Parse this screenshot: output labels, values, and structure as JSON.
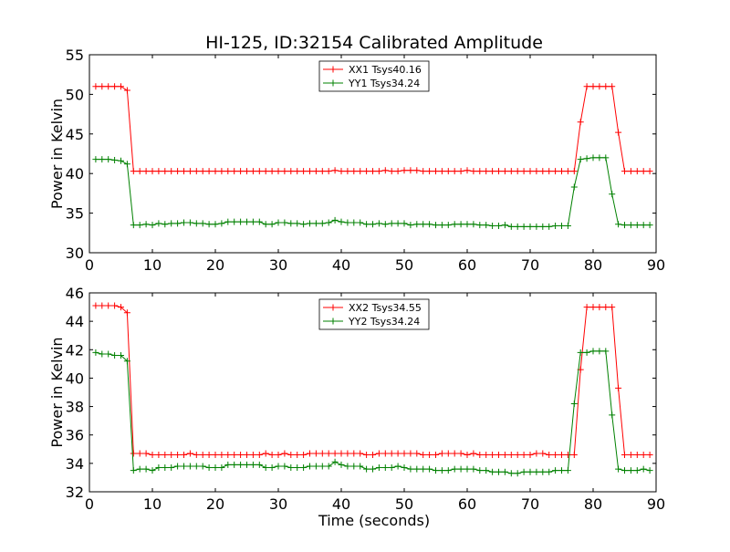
{
  "figure": {
    "title": "HI-125, ID:32154 Calibrated Amplitude",
    "xlabel": "Time (seconds)"
  },
  "chart_data": [
    {
      "type": "line",
      "title": "HI-125, ID:32154 Calibrated Amplitude",
      "xlabel": "",
      "ylabel": "Power in Kelvin",
      "xlim": [
        0,
        90
      ],
      "ylim": [
        30,
        55
      ],
      "xticks": [
        0,
        10,
        20,
        30,
        40,
        50,
        60,
        70,
        80,
        90
      ],
      "yticks": [
        30,
        35,
        40,
        45,
        50,
        55
      ],
      "grid": false,
      "legend_position": "top-center",
      "series": [
        {
          "name": "XX1 Tsys40.16",
          "color": "#ff0000",
          "marker": "plus",
          "x": [
            1,
            2,
            3,
            4,
            5,
            6,
            7,
            8,
            9,
            10,
            11,
            12,
            13,
            14,
            15,
            16,
            17,
            18,
            19,
            20,
            21,
            22,
            23,
            24,
            25,
            26,
            27,
            28,
            29,
            30,
            31,
            32,
            33,
            34,
            35,
            36,
            37,
            38,
            39,
            40,
            41,
            42,
            43,
            44,
            45,
            46,
            47,
            48,
            49,
            50,
            51,
            52,
            53,
            54,
            55,
            56,
            57,
            58,
            59,
            60,
            61,
            62,
            63,
            64,
            65,
            66,
            67,
            68,
            69,
            70,
            71,
            72,
            73,
            74,
            75,
            76,
            77,
            78,
            79,
            80,
            81,
            82,
            83,
            84,
            85,
            86,
            87,
            88,
            89
          ],
          "y": [
            51.0,
            51.0,
            51.0,
            51.0,
            51.0,
            50.5,
            40.3,
            40.3,
            40.3,
            40.3,
            40.3,
            40.3,
            40.3,
            40.3,
            40.3,
            40.3,
            40.3,
            40.3,
            40.3,
            40.3,
            40.3,
            40.3,
            40.3,
            40.3,
            40.3,
            40.3,
            40.3,
            40.3,
            40.3,
            40.3,
            40.3,
            40.3,
            40.3,
            40.3,
            40.3,
            40.3,
            40.3,
            40.3,
            40.4,
            40.3,
            40.3,
            40.3,
            40.3,
            40.3,
            40.3,
            40.3,
            40.4,
            40.3,
            40.3,
            40.4,
            40.4,
            40.4,
            40.3,
            40.3,
            40.3,
            40.3,
            40.3,
            40.3,
            40.3,
            40.4,
            40.3,
            40.3,
            40.3,
            40.3,
            40.3,
            40.3,
            40.3,
            40.3,
            40.3,
            40.3,
            40.3,
            40.3,
            40.3,
            40.3,
            40.3,
            40.3,
            40.3,
            46.5,
            51.0,
            51.0,
            51.0,
            51.0,
            51.0,
            45.2,
            40.3,
            40.3,
            40.3,
            40.3,
            40.3
          ]
        },
        {
          "name": "YY1 Tsys34.24",
          "color": "#008000",
          "marker": "plus",
          "x": [
            1,
            2,
            3,
            4,
            5,
            6,
            7,
            8,
            9,
            10,
            11,
            12,
            13,
            14,
            15,
            16,
            17,
            18,
            19,
            20,
            21,
            22,
            23,
            24,
            25,
            26,
            27,
            28,
            29,
            30,
            31,
            32,
            33,
            34,
            35,
            36,
            37,
            38,
            39,
            40,
            41,
            42,
            43,
            44,
            45,
            46,
            47,
            48,
            49,
            50,
            51,
            52,
            53,
            54,
            55,
            56,
            57,
            58,
            59,
            60,
            61,
            62,
            63,
            64,
            65,
            66,
            67,
            68,
            69,
            70,
            71,
            72,
            73,
            74,
            75,
            76,
            77,
            78,
            79,
            80,
            81,
            82,
            83,
            84,
            85,
            86,
            87,
            88,
            89
          ],
          "y": [
            41.8,
            41.8,
            41.8,
            41.7,
            41.6,
            41.2,
            33.5,
            33.5,
            33.6,
            33.5,
            33.7,
            33.6,
            33.7,
            33.7,
            33.8,
            33.8,
            33.7,
            33.7,
            33.6,
            33.6,
            33.7,
            33.9,
            33.9,
            33.9,
            33.9,
            33.9,
            33.9,
            33.6,
            33.6,
            33.8,
            33.8,
            33.7,
            33.7,
            33.6,
            33.7,
            33.7,
            33.7,
            33.8,
            34.1,
            33.9,
            33.8,
            33.8,
            33.8,
            33.6,
            33.6,
            33.7,
            33.6,
            33.7,
            33.7,
            33.7,
            33.5,
            33.6,
            33.6,
            33.6,
            33.5,
            33.5,
            33.5,
            33.6,
            33.6,
            33.6,
            33.6,
            33.5,
            33.5,
            33.4,
            33.4,
            33.5,
            33.3,
            33.3,
            33.3,
            33.3,
            33.3,
            33.3,
            33.3,
            33.4,
            33.4,
            33.4,
            38.3,
            41.8,
            41.9,
            42.0,
            42.0,
            42.0,
            37.4,
            33.6,
            33.5,
            33.5,
            33.5,
            33.5,
            33.5
          ]
        }
      ]
    },
    {
      "type": "line",
      "title": "",
      "xlabel": "Time (seconds)",
      "ylabel": "Power in Kelvin",
      "xlim": [
        0,
        90
      ],
      "ylim": [
        32,
        46
      ],
      "xticks": [
        0,
        10,
        20,
        30,
        40,
        50,
        60,
        70,
        80,
        90
      ],
      "yticks": [
        32,
        34,
        36,
        38,
        40,
        42,
        44,
        46
      ],
      "grid": false,
      "legend_position": "top-center",
      "series": [
        {
          "name": "XX2 Tsys34.55",
          "color": "#ff0000",
          "marker": "plus",
          "x": [
            1,
            2,
            3,
            4,
            5,
            6,
            7,
            8,
            9,
            10,
            11,
            12,
            13,
            14,
            15,
            16,
            17,
            18,
            19,
            20,
            21,
            22,
            23,
            24,
            25,
            26,
            27,
            28,
            29,
            30,
            31,
            32,
            33,
            34,
            35,
            36,
            37,
            38,
            39,
            40,
            41,
            42,
            43,
            44,
            45,
            46,
            47,
            48,
            49,
            50,
            51,
            52,
            53,
            54,
            55,
            56,
            57,
            58,
            59,
            60,
            61,
            62,
            63,
            64,
            65,
            66,
            67,
            68,
            69,
            70,
            71,
            72,
            73,
            74,
            75,
            76,
            77,
            78,
            79,
            80,
            81,
            82,
            83,
            84,
            85,
            86,
            87,
            88,
            89
          ],
          "y": [
            45.1,
            45.1,
            45.1,
            45.1,
            45.0,
            44.6,
            34.7,
            34.7,
            34.7,
            34.6,
            34.6,
            34.6,
            34.6,
            34.6,
            34.6,
            34.7,
            34.6,
            34.6,
            34.6,
            34.6,
            34.6,
            34.6,
            34.6,
            34.6,
            34.6,
            34.6,
            34.6,
            34.7,
            34.6,
            34.6,
            34.7,
            34.6,
            34.6,
            34.6,
            34.7,
            34.7,
            34.7,
            34.7,
            34.7,
            34.7,
            34.7,
            34.7,
            34.7,
            34.6,
            34.6,
            34.7,
            34.7,
            34.7,
            34.7,
            34.7,
            34.7,
            34.7,
            34.6,
            34.6,
            34.6,
            34.7,
            34.7,
            34.7,
            34.7,
            34.6,
            34.7,
            34.6,
            34.6,
            34.6,
            34.6,
            34.6,
            34.6,
            34.6,
            34.6,
            34.6,
            34.7,
            34.7,
            34.6,
            34.6,
            34.6,
            34.6,
            34.6,
            40.6,
            45.0,
            45.0,
            45.0,
            45.0,
            45.0,
            39.3,
            34.6,
            34.6,
            34.6,
            34.6,
            34.6
          ]
        },
        {
          "name": "YY2 Tsys34.24",
          "color": "#008000",
          "marker": "plus",
          "x": [
            1,
            2,
            3,
            4,
            5,
            6,
            7,
            8,
            9,
            10,
            11,
            12,
            13,
            14,
            15,
            16,
            17,
            18,
            19,
            20,
            21,
            22,
            23,
            24,
            25,
            26,
            27,
            28,
            29,
            30,
            31,
            32,
            33,
            34,
            35,
            36,
            37,
            38,
            39,
            40,
            41,
            42,
            43,
            44,
            45,
            46,
            47,
            48,
            49,
            50,
            51,
            52,
            53,
            54,
            55,
            56,
            57,
            58,
            59,
            60,
            61,
            62,
            63,
            64,
            65,
            66,
            67,
            68,
            69,
            70,
            71,
            72,
            73,
            74,
            75,
            76,
            77,
            78,
            79,
            80,
            81,
            82,
            83,
            84,
            85,
            86,
            87,
            88,
            89
          ],
          "y": [
            41.8,
            41.7,
            41.7,
            41.6,
            41.6,
            41.2,
            33.5,
            33.6,
            33.6,
            33.5,
            33.7,
            33.7,
            33.7,
            33.8,
            33.8,
            33.8,
            33.8,
            33.8,
            33.7,
            33.7,
            33.7,
            33.9,
            33.9,
            33.9,
            33.9,
            33.9,
            33.9,
            33.7,
            33.7,
            33.8,
            33.8,
            33.7,
            33.7,
            33.7,
            33.8,
            33.8,
            33.8,
            33.8,
            34.1,
            33.9,
            33.8,
            33.8,
            33.8,
            33.6,
            33.6,
            33.7,
            33.7,
            33.7,
            33.8,
            33.7,
            33.6,
            33.6,
            33.6,
            33.6,
            33.5,
            33.5,
            33.5,
            33.6,
            33.6,
            33.6,
            33.6,
            33.5,
            33.5,
            33.4,
            33.4,
            33.4,
            33.3,
            33.3,
            33.4,
            33.4,
            33.4,
            33.4,
            33.4,
            33.5,
            33.5,
            33.5,
            38.2,
            41.8,
            41.8,
            41.9,
            41.9,
            41.9,
            37.4,
            33.6,
            33.5,
            33.5,
            33.5,
            33.6,
            33.5
          ]
        }
      ]
    }
  ]
}
